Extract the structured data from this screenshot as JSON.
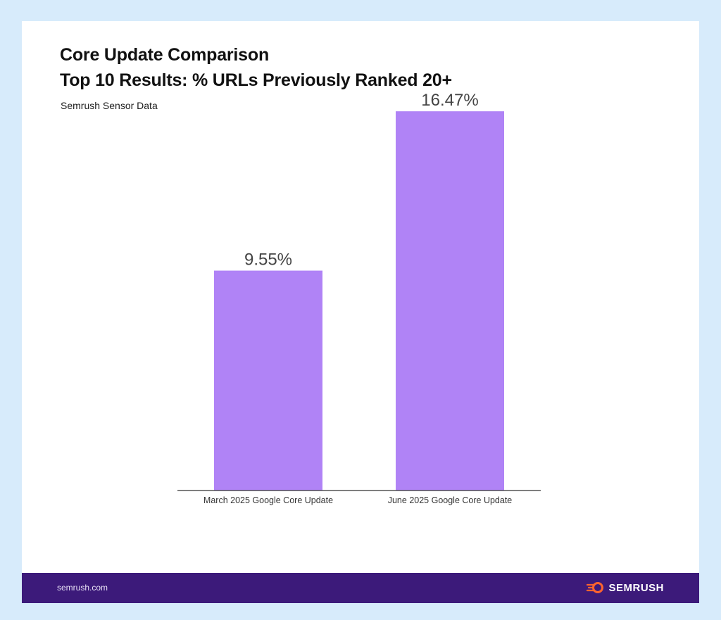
{
  "header": {
    "title_line1": "Core Update Comparison",
    "title_line2": "Top 10 Results: % URLs Previously Ranked 20+",
    "source": "Semrush Sensor Data"
  },
  "footer": {
    "site": "semrush.com",
    "brand": "SEMRUSH",
    "brand_icon": "semrush-fireball-icon"
  },
  "colors": {
    "background": "#d7ebfb",
    "bar": "#b083f6",
    "footer": "#3c1a7a",
    "brand_accent": "#ff642d"
  },
  "chart_data": {
    "type": "bar",
    "categories": [
      "March 2025 Google Core Update",
      "June 2025 Google Core Update"
    ],
    "values": [
      9.55,
      16.47
    ],
    "value_labels": [
      "9.55%",
      "16.47%"
    ],
    "ylim": [
      0,
      19.5
    ],
    "grid": false,
    "legend": "none"
  }
}
